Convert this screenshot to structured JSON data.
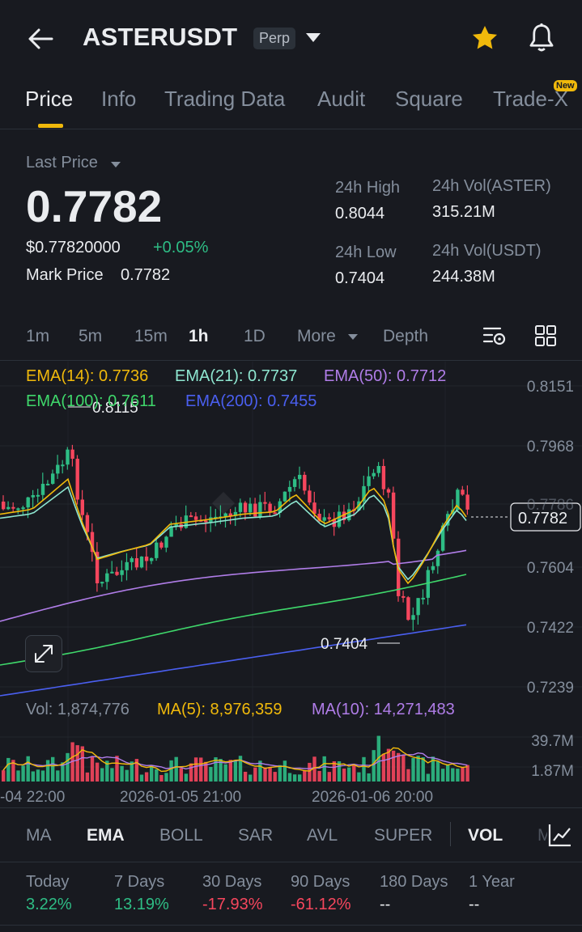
{
  "header": {
    "symbol": "ASTERUSDT",
    "contract_type": "Perp"
  },
  "tabs": [
    {
      "label": "Price",
      "active": true
    },
    {
      "label": "Info"
    },
    {
      "label": "Trading Data"
    },
    {
      "label": "Audit"
    },
    {
      "label": "Square"
    },
    {
      "label": "Trade-X",
      "badge": "New"
    }
  ],
  "ticker": {
    "last_price_label": "Last Price",
    "last_price": "0.7782",
    "usd_price": "$0.77820000",
    "change_pct": "+0.05%",
    "mark_price_label": "Mark Price",
    "mark_price": "0.7782",
    "high_label": "24h High",
    "high": "0.8044",
    "low_label": "24h Low",
    "low": "0.7404",
    "vol_base_label": "24h Vol(ASTER)",
    "vol_base": "315.21M",
    "vol_quote_label": "24h Vol(USDT)",
    "vol_quote": "244.38M"
  },
  "timeframes": [
    {
      "label": "1m"
    },
    {
      "label": "5m"
    },
    {
      "label": "15m"
    },
    {
      "label": "1h",
      "active": true
    },
    {
      "label": "1D"
    },
    {
      "label": "More"
    },
    {
      "label": "Depth"
    }
  ],
  "ema_legend": {
    "ema14": "EMA(14): 0.7736",
    "ema21": "EMA(21): 0.7737",
    "ema50": "EMA(50): 0.7712",
    "ema100": "EMA(100): 0.7611",
    "ema200": "EMA(200): 0.7455"
  },
  "price_axis": [
    "0.8151",
    "0.7968",
    "0.7786",
    "0.7604",
    "0.7422",
    "0.7239"
  ],
  "current_price_tag": "0.7782",
  "high_marker": "0.8115",
  "low_marker": "0.7404",
  "volume_legend": {
    "vol": "Vol: 1,874,776",
    "ma5": "MA(5): 8,976,359",
    "ma10": "MA(10): 14,271,483"
  },
  "volume_axis": [
    "39.7M",
    "1.87M"
  ],
  "time_axis": [
    "-04 22:00",
    "2026-01-05 21:00",
    "2026-01-06 20:00"
  ],
  "indicators": [
    {
      "label": "MA"
    },
    {
      "label": "EMA",
      "active": true
    },
    {
      "label": "BOLL"
    },
    {
      "label": "SAR"
    },
    {
      "label": "AVL"
    },
    {
      "label": "SUPER"
    },
    {
      "label": "VOL",
      "active": true
    },
    {
      "label": "MACD"
    }
  ],
  "performance": [
    {
      "label": "Today",
      "value": "3.22%",
      "trend": "up"
    },
    {
      "label": "7 Days",
      "value": "13.19%",
      "trend": "up"
    },
    {
      "label": "30 Days",
      "value": "-17.93%",
      "trend": "down"
    },
    {
      "label": "90 Days",
      "value": "-61.12%",
      "trend": "down"
    },
    {
      "label": "180 Days",
      "value": "--",
      "trend": "none"
    },
    {
      "label": "1 Year",
      "value": "--",
      "trend": "none"
    }
  ],
  "colors": {
    "bg": "#181a20",
    "up": "#2ebd85",
    "down": "#f6465d",
    "accent": "#f0b90b",
    "ema14": "#f0b90b",
    "ema21": "#8ee6d0",
    "ema50": "#b07de8",
    "ema100": "#3fd86b",
    "ema200": "#4a5ff0"
  },
  "icons": [
    "back-arrow-icon",
    "dropdown-caret-icon",
    "star-icon",
    "bell-icon",
    "chart-settings-icon",
    "grid-icon",
    "expand-icon",
    "indicator-chart-icon"
  ]
}
